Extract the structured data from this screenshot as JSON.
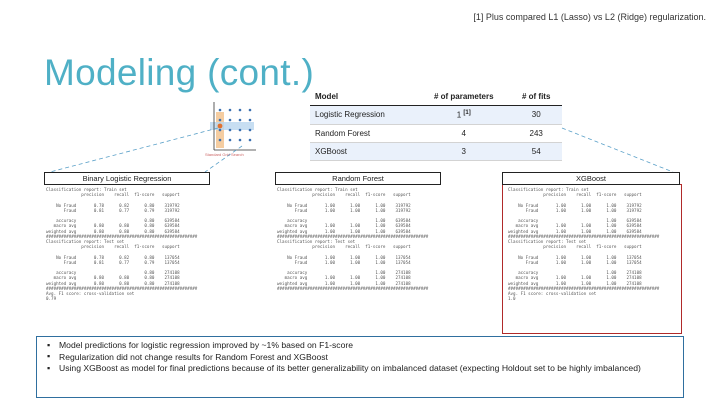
{
  "footnote": "[1] Plus compared L1 (Lasso) vs L2 (Ridge) regularization.",
  "title": "Modeling (cont.)",
  "diagram_caption": "Standard Grid Search",
  "table": {
    "headers": [
      "Model",
      "# of parameters",
      "# of fits"
    ],
    "rows": [
      {
        "model": "Logistic Regression",
        "params": "1",
        "sup": "[1]",
        "fits": "30"
      },
      {
        "model": "Random Forest",
        "params": "4",
        "sup": "",
        "fits": "243"
      },
      {
        "model": "XGBoost",
        "params": "3",
        "sup": "",
        "fits": "54"
      }
    ]
  },
  "panels": [
    {
      "title": "Binary Logistic Regression",
      "report": "Classification report: Train set\n              precision    recall  f1-score   support\n\n    No Fraud       0.78      0.82      0.80    319792\n       Fraud       0.81      0.77      0.79    319792\n\n    accuracy                           0.80    639584\n   macro avg       0.80      0.80      0.80    639584\nweighted avg       0.80      0.80      0.80    639584\n############################################################\nClassification report: Test set\n              precision    recall  f1-score   support\n\n    No Fraud       0.78      0.82      0.80    137054\n       Fraud       0.81      0.77      0.79    137054\n\n    accuracy                           0.80    274108\n   macro avg       0.80      0.80      0.80    274108\nweighted avg       0.80      0.80      0.80    274108\n############################################################\nAvg. F1 score: cross-validation set\n0.79"
    },
    {
      "title": "Random Forest",
      "report": "Classification report: Train set\n              precision    recall  f1-score   support\n\n    No Fraud       1.00      1.00      1.00    319792\n       Fraud       1.00      1.00      1.00    319792\n\n    accuracy                           1.00    639584\n   macro avg       1.00      1.00      1.00    639584\nweighted avg       1.00      1.00      1.00    639584\n############################################################\nClassification report: Test set\n              precision    recall  f1-score   support\n\n    No Fraud       1.00      1.00      1.00    137054\n       Fraud       1.00      1.00      1.00    137054\n\n    accuracy                           1.00    274108\n   macro avg       1.00      1.00      1.00    274108\nweighted avg       1.00      1.00      1.00    274108\n############################################################"
    },
    {
      "title": "XGBoost",
      "report": "Classification report: Train set\n              precision    recall  f1-score   support\n\n    No Fraud       1.00      1.00      1.00    319792\n       Fraud       1.00      1.00      1.00    319792\n\n    accuracy                           1.00    639584\n   macro avg       1.00      1.00      1.00    639584\nweighted avg       1.00      1.00      1.00    639584\n############################################################\nClassification report: Test set\n              precision    recall  f1-score   support\n\n    No Fraud       1.00      1.00      1.00    137054\n       Fraud       1.00      1.00      1.00    137054\n\n    accuracy                           1.00    274108\n   macro avg       1.00      1.00      1.00    274108\nweighted avg       1.00      1.00      1.00    274108\n############################################################\nAvg. F1 score: cross-validation set\n1.0"
    }
  ],
  "bullets": [
    "Model predictions for logistic regression improved by ~1% based on F1-score",
    "Regularization did not change results for Random Forest and XGBoost",
    "Using XGBoost  as model for final predictions because of its better generalizability on imbalanced dataset (expecting Holdout set to be highly imbalanced)"
  ],
  "colors": {
    "title": "#4fb0c6",
    "highlight_border": "#b02a2a",
    "bullet_border": "#2f6f9f",
    "table_row": "#eaf1fb"
  }
}
